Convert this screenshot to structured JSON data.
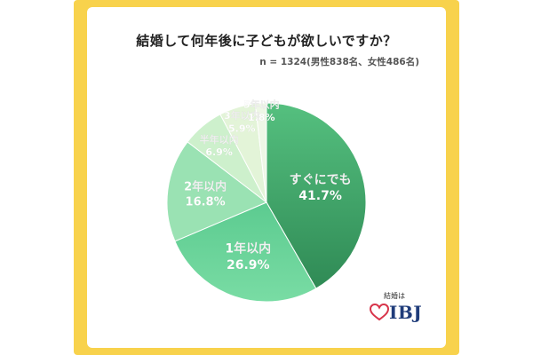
{
  "title": "結婚して何年後に子どもが欲しいですか？",
  "subtitle": "n = 1324(男性838名、女性486名)",
  "logo": {
    "small": "結婚は",
    "main": "IBJ"
  },
  "chart_data": {
    "type": "pie",
    "title": "結婚して何年後に子どもが欲しいですか？",
    "slices": [
      {
        "label": "すぐにでも",
        "value": 41.7,
        "value_text": "41.7%",
        "color": "#3d9e62"
      },
      {
        "label": "1年以内",
        "value": 26.9,
        "value_text": "26.9%",
        "color": "#6fd49a"
      },
      {
        "label": "2年以内",
        "value": 16.8,
        "value_text": "16.8%",
        "color": "#9ae2b3"
      },
      {
        "label": "半年以内",
        "value": 6.9,
        "value_text": "6.9%",
        "color": "#cdf0cc"
      },
      {
        "label": "3年以内",
        "value": 5.9,
        "value_text": "5.9%",
        "color": "#e3f4d8"
      },
      {
        "label": "5年以内",
        "value": 1.8,
        "value_text": "1.8%",
        "color": "#eef7e6"
      }
    ]
  }
}
